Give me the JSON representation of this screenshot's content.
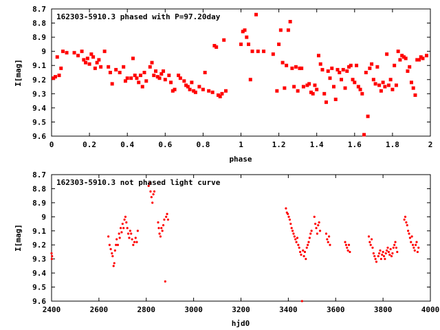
{
  "chart_data": [
    {
      "type": "scatter",
      "title": "162303-5910.3 phased with P=97.20day",
      "xlabel": "phase",
      "ylabel": "I[mag]",
      "xlim": [
        0,
        2
      ],
      "ylim": [
        8.7,
        9.6
      ],
      "y_inverted": true,
      "grid": false,
      "x_ticks": [
        0,
        0.2,
        0.4,
        0.6,
        0.8,
        1,
        1.2,
        1.4,
        1.6,
        1.8,
        2
      ],
      "x_tick_labels": [
        "0",
        "0.2",
        "0.4",
        "0.6",
        "0.8",
        "1",
        "1.2",
        "1.4",
        "1.6",
        "1.8",
        "2"
      ],
      "y_ticks": [
        8.7,
        8.8,
        8.9,
        9,
        9.1,
        9.2,
        9.3,
        9.4,
        9.5,
        9.6
      ],
      "y_tick_labels": [
        "8.7",
        "8.8",
        "8.9",
        "9",
        "9.1",
        "9.2",
        "9.3",
        "9.4",
        "9.5",
        "9.6"
      ],
      "marker": "filled-square",
      "color": "#ff0000",
      "points": [
        [
          0.01,
          9.19
        ],
        [
          0.02,
          9.18
        ],
        [
          0.03,
          9.04
        ],
        [
          0.04,
          9.17
        ],
        [
          0.05,
          9.12
        ],
        [
          0.06,
          9.0
        ],
        [
          0.08,
          9.01
        ],
        [
          0.12,
          9.01
        ],
        [
          0.14,
          9.03
        ],
        [
          0.16,
          9.0
        ],
        [
          0.17,
          9.06
        ],
        [
          0.18,
          9.08
        ],
        [
          0.19,
          9.05
        ],
        [
          0.2,
          9.09
        ],
        [
          0.21,
          9.02
        ],
        [
          0.22,
          9.04
        ],
        [
          0.23,
          9.12
        ],
        [
          0.24,
          9.08
        ],
        [
          0.25,
          9.06
        ],
        [
          0.26,
          9.11
        ],
        [
          0.28,
          9.0
        ],
        [
          0.3,
          9.11
        ],
        [
          0.31,
          9.15
        ],
        [
          0.32,
          9.23
        ],
        [
          0.34,
          9.13
        ],
        [
          0.36,
          9.15
        ],
        [
          0.38,
          9.11
        ],
        [
          0.39,
          9.21
        ],
        [
          0.4,
          9.19
        ],
        [
          0.42,
          9.19
        ],
        [
          0.43,
          9.05
        ],
        [
          0.44,
          9.17
        ],
        [
          0.45,
          9.19
        ],
        [
          0.46,
          9.22
        ],
        [
          0.47,
          9.17
        ],
        [
          0.48,
          9.25
        ],
        [
          0.49,
          9.15
        ],
        [
          0.5,
          9.21
        ],
        [
          0.52,
          9.11
        ],
        [
          0.53,
          9.08
        ],
        [
          0.54,
          9.17
        ],
        [
          0.55,
          9.14
        ],
        [
          0.56,
          9.18
        ],
        [
          0.57,
          9.19
        ],
        [
          0.58,
          9.16
        ],
        [
          0.59,
          9.14
        ],
        [
          0.6,
          9.2
        ],
        [
          0.62,
          9.17
        ],
        [
          0.63,
          9.22
        ],
        [
          0.64,
          9.28
        ],
        [
          0.65,
          9.27
        ],
        [
          0.67,
          9.17
        ],
        [
          0.68,
          9.19
        ],
        [
          0.7,
          9.21
        ],
        [
          0.71,
          9.24
        ],
        [
          0.72,
          9.25
        ],
        [
          0.73,
          9.27
        ],
        [
          0.74,
          9.22
        ],
        [
          0.75,
          9.28
        ],
        [
          0.76,
          9.29
        ],
        [
          0.78,
          9.25
        ],
        [
          0.8,
          9.27
        ],
        [
          0.81,
          9.15
        ],
        [
          0.83,
          9.28
        ],
        [
          0.85,
          9.29
        ],
        [
          0.86,
          8.96
        ],
        [
          0.87,
          8.97
        ],
        [
          0.88,
          9.31
        ],
        [
          0.89,
          9.32
        ],
        [
          0.9,
          9.3
        ],
        [
          0.91,
          8.92
        ],
        [
          0.92,
          9.28
        ],
        [
          1.0,
          8.95
        ],
        [
          1.01,
          8.86
        ],
        [
          1.02,
          8.85
        ],
        [
          1.03,
          8.9
        ],
        [
          1.04,
          8.95
        ],
        [
          1.05,
          9.2
        ],
        [
          1.06,
          9.0
        ],
        [
          1.08,
          8.74
        ],
        [
          1.09,
          9.0
        ],
        [
          1.12,
          9.0
        ],
        [
          1.17,
          9.02
        ],
        [
          1.19,
          9.28
        ],
        [
          1.2,
          8.95
        ],
        [
          1.21,
          8.85
        ],
        [
          1.22,
          9.08
        ],
        [
          1.23,
          9.26
        ],
        [
          1.24,
          9.1
        ],
        [
          1.25,
          8.85
        ],
        [
          1.26,
          8.79
        ],
        [
          1.27,
          9.12
        ],
        [
          1.28,
          9.25
        ],
        [
          1.29,
          9.11
        ],
        [
          1.3,
          9.28
        ],
        [
          1.31,
          9.12
        ],
        [
          1.32,
          9.12
        ],
        [
          1.33,
          9.25
        ],
        [
          1.35,
          9.24
        ],
        [
          1.36,
          9.23
        ],
        [
          1.37,
          9.29
        ],
        [
          1.38,
          9.3
        ],
        [
          1.39,
          9.24
        ],
        [
          1.4,
          9.27
        ],
        [
          1.41,
          9.03
        ],
        [
          1.42,
          9.09
        ],
        [
          1.43,
          9.13
        ],
        [
          1.44,
          9.3
        ],
        [
          1.45,
          9.36
        ],
        [
          1.46,
          9.14
        ],
        [
          1.47,
          9.19
        ],
        [
          1.48,
          9.12
        ],
        [
          1.49,
          9.25
        ],
        [
          1.5,
          9.34
        ],
        [
          1.51,
          9.13
        ],
        [
          1.52,
          9.15
        ],
        [
          1.53,
          9.2
        ],
        [
          1.54,
          9.13
        ],
        [
          1.55,
          9.26
        ],
        [
          1.56,
          9.14
        ],
        [
          1.57,
          9.11
        ],
        [
          1.58,
          9.1
        ],
        [
          1.59,
          9.2
        ],
        [
          1.6,
          9.22
        ],
        [
          1.61,
          9.1
        ],
        [
          1.62,
          9.25
        ],
        [
          1.63,
          9.27
        ],
        [
          1.64,
          9.3
        ],
        [
          1.65,
          9.59
        ],
        [
          1.66,
          9.15
        ],
        [
          1.67,
          9.46
        ],
        [
          1.68,
          9.12
        ],
        [
          1.69,
          9.09
        ],
        [
          1.7,
          9.2
        ],
        [
          1.71,
          9.23
        ],
        [
          1.72,
          9.11
        ],
        [
          1.73,
          9.24
        ],
        [
          1.74,
          9.28
        ],
        [
          1.75,
          9.22
        ],
        [
          1.76,
          9.25
        ],
        [
          1.77,
          9.02
        ],
        [
          1.78,
          9.24
        ],
        [
          1.79,
          9.2
        ],
        [
          1.8,
          9.27
        ],
        [
          1.81,
          9.1
        ],
        [
          1.82,
          9.24
        ],
        [
          1.83,
          9.0
        ],
        [
          1.84,
          9.06
        ],
        [
          1.85,
          9.03
        ],
        [
          1.86,
          9.04
        ],
        [
          1.87,
          9.05
        ],
        [
          1.88,
          9.14
        ],
        [
          1.89,
          9.11
        ],
        [
          1.9,
          9.22
        ],
        [
          1.91,
          9.26
        ],
        [
          1.92,
          9.31
        ],
        [
          1.93,
          9.06
        ],
        [
          1.94,
          9.06
        ],
        [
          1.95,
          9.04
        ],
        [
          1.96,
          9.05
        ],
        [
          1.98,
          9.03
        ]
      ]
    },
    {
      "type": "scatter",
      "title": "162303-5910.3 not phased light curve",
      "xlabel": "hjd0",
      "ylabel": "I[mag]",
      "xlim": [
        2400,
        4000
      ],
      "ylim": [
        8.7,
        9.6
      ],
      "y_inverted": true,
      "grid": false,
      "x_ticks": [
        2400,
        2600,
        2800,
        3000,
        3200,
        3400,
        3600,
        3800,
        4000
      ],
      "x_tick_labels": [
        "2400",
        "2600",
        "2800",
        "3000",
        "3200",
        "3400",
        "3600",
        "3800",
        "4000"
      ],
      "y_ticks": [
        8.7,
        8.8,
        8.9,
        9,
        9.1,
        9.2,
        9.3,
        9.4,
        9.5,
        9.6
      ],
      "y_tick_labels": [
        "8.7",
        "8.8",
        "8.9",
        "9",
        "9.1",
        "9.2",
        "9.3",
        "9.4",
        "9.5",
        "9.6"
      ],
      "marker": "small-dot",
      "color": "#ff0000",
      "points": [
        [
          2400,
          9.26
        ],
        [
          2401,
          9.3
        ],
        [
          2402,
          9.28
        ],
        [
          2640,
          9.14
        ],
        [
          2645,
          9.2
        ],
        [
          2650,
          9.23
        ],
        [
          2655,
          9.26
        ],
        [
          2658,
          9.28
        ],
        [
          2662,
          9.35
        ],
        [
          2665,
          9.33
        ],
        [
          2668,
          9.24
        ],
        [
          2672,
          9.2
        ],
        [
          2675,
          9.16
        ],
        [
          2680,
          9.2
        ],
        [
          2685,
          9.12
        ],
        [
          2688,
          9.15
        ],
        [
          2692,
          9.08
        ],
        [
          2696,
          9.11
        ],
        [
          2700,
          9.05
        ],
        [
          2704,
          9.08
        ],
        [
          2708,
          9.02
        ],
        [
          2712,
          9.0
        ],
        [
          2716,
          9.04
        ],
        [
          2720,
          9.08
        ],
        [
          2724,
          9.12
        ],
        [
          2728,
          9.15
        ],
        [
          2732,
          9.1
        ],
        [
          2736,
          9.12
        ],
        [
          2740,
          9.16
        ],
        [
          2745,
          9.2
        ],
        [
          2750,
          9.18
        ],
        [
          2755,
          9.15
        ],
        [
          2760,
          9.18
        ],
        [
          2764,
          9.1
        ],
        [
          2810,
          8.78
        ],
        [
          2815,
          8.76
        ],
        [
          2818,
          8.82
        ],
        [
          2822,
          8.86
        ],
        [
          2826,
          8.9
        ],
        [
          2830,
          8.84
        ],
        [
          2834,
          8.82
        ],
        [
          2850,
          9.04
        ],
        [
          2853,
          9.08
        ],
        [
          2856,
          9.12
        ],
        [
          2860,
          9.14
        ],
        [
          2864,
          9.08
        ],
        [
          2868,
          9.1
        ],
        [
          2872,
          9.06
        ],
        [
          2876,
          9.02
        ],
        [
          2880,
          9.46
        ],
        [
          2884,
          9.0
        ],
        [
          2888,
          8.98
        ],
        [
          2892,
          9.02
        ],
        [
          3390,
          8.94
        ],
        [
          3394,
          8.97
        ],
        [
          3398,
          8.98
        ],
        [
          3402,
          9.0
        ],
        [
          3406,
          9.02
        ],
        [
          3410,
          9.05
        ],
        [
          3414,
          9.08
        ],
        [
          3418,
          9.1
        ],
        [
          3422,
          9.12
        ],
        [
          3426,
          9.14
        ],
        [
          3430,
          9.16
        ],
        [
          3434,
          9.18
        ],
        [
          3438,
          9.15
        ],
        [
          3442,
          9.2
        ],
        [
          3446,
          9.22
        ],
        [
          3450,
          9.25
        ],
        [
          3454,
          9.27
        ],
        [
          3458,
          9.6
        ],
        [
          3462,
          9.24
        ],
        [
          3466,
          9.28
        ],
        [
          3470,
          9.25
        ],
        [
          3474,
          9.3
        ],
        [
          3478,
          9.22
        ],
        [
          3482,
          9.2
        ],
        [
          3486,
          9.18
        ],
        [
          3490,
          9.15
        ],
        [
          3494,
          9.12
        ],
        [
          3498,
          9.1
        ],
        [
          3510,
          9.0
        ],
        [
          3514,
          9.05
        ],
        [
          3518,
          9.08
        ],
        [
          3522,
          9.12
        ],
        [
          3526,
          9.06
        ],
        [
          3530,
          9.04
        ],
        [
          3534,
          9.1
        ],
        [
          3560,
          9.12
        ],
        [
          3564,
          9.16
        ],
        [
          3568,
          9.18
        ],
        [
          3572,
          9.14
        ],
        [
          3576,
          9.2
        ],
        [
          3640,
          9.18
        ],
        [
          3644,
          9.2
        ],
        [
          3648,
          9.22
        ],
        [
          3652,
          9.24
        ],
        [
          3656,
          9.2
        ],
        [
          3660,
          9.25
        ],
        [
          3740,
          9.14
        ],
        [
          3744,
          9.18
        ],
        [
          3748,
          9.2
        ],
        [
          3752,
          9.16
        ],
        [
          3756,
          9.22
        ],
        [
          3760,
          9.26
        ],
        [
          3764,
          9.28
        ],
        [
          3768,
          9.3
        ],
        [
          3772,
          9.32
        ],
        [
          3780,
          9.28
        ],
        [
          3784,
          9.26
        ],
        [
          3788,
          9.24
        ],
        [
          3792,
          9.3
        ],
        [
          3796,
          9.27
        ],
        [
          3800,
          9.25
        ],
        [
          3804,
          9.28
        ],
        [
          3808,
          9.3
        ],
        [
          3812,
          9.26
        ],
        [
          3816,
          9.24
        ],
        [
          3820,
          9.22
        ],
        [
          3824,
          9.25
        ],
        [
          3828,
          9.27
        ],
        [
          3832,
          9.23
        ],
        [
          3836,
          9.28
        ],
        [
          3840,
          9.26
        ],
        [
          3844,
          9.22
        ],
        [
          3848,
          9.2
        ],
        [
          3852,
          9.18
        ],
        [
          3856,
          9.22
        ],
        [
          3860,
          9.25
        ],
        [
          3890,
          9.02
        ],
        [
          3894,
          9.0
        ],
        [
          3898,
          9.04
        ],
        [
          3902,
          9.06
        ],
        [
          3906,
          9.1
        ],
        [
          3910,
          9.12
        ],
        [
          3914,
          9.15
        ],
        [
          3918,
          9.18
        ],
        [
          3922,
          9.14
        ],
        [
          3926,
          9.2
        ],
        [
          3930,
          9.22
        ],
        [
          3934,
          9.24
        ],
        [
          3938,
          9.2
        ],
        [
          3942,
          9.18
        ],
        [
          3946,
          9.25
        ],
        [
          3950,
          9.22
        ]
      ]
    }
  ]
}
